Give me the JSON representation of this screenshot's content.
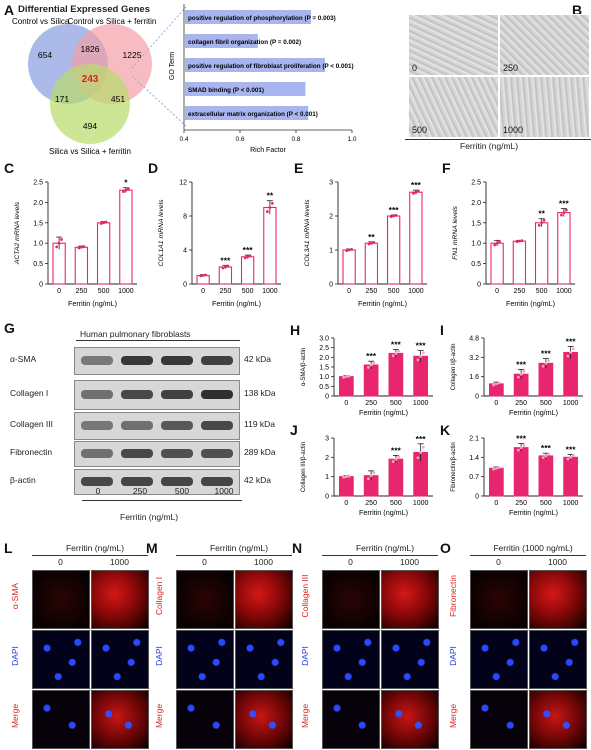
{
  "panels": {
    "A": "A",
    "B": "B",
    "C": "C",
    "D": "D",
    "E": "E",
    "F": "F",
    "G": "G",
    "H": "H",
    "I": "I",
    "J": "J",
    "K": "K",
    "L": "L",
    "M": "M",
    "N": "N",
    "O": "O"
  },
  "venn": {
    "title": "Differential Expressed Genes",
    "set1": "Control vs Silica",
    "set2": "Control vs Silica + ferritin",
    "set3": "Silica vs Silica + ferritin",
    "counts": {
      "only1": "654",
      "only2": "1225",
      "only3": "494",
      "s12": "1826",
      "s13": "171",
      "s23": "451",
      "all": "243"
    }
  },
  "go": {
    "ylabel": "GO Term",
    "xlabel": "Rich Factor",
    "ticks": [
      "0.4",
      "0.6",
      "0.8",
      "1.0"
    ],
    "terms": [
      {
        "label": "positive regulation of phosphorylation (P = 0.003)",
        "rich": 0.85
      },
      {
        "label": "collagen fibril organization (P = 0.002)",
        "rich": 0.66
      },
      {
        "label": "positive regulation of fibroblast proliferation (P < 0.001)",
        "rich": 0.9
      },
      {
        "label": "SMAD binding (P < 0.001)",
        "rich": 0.83
      },
      {
        "label": "extracellular matrix organization (P < 0.001)",
        "rich": 0.84
      }
    ]
  },
  "microscopy_b": {
    "labels": [
      "0",
      "250",
      "500",
      "1000"
    ],
    "xlabel": "Ferritin (ng/mL)"
  },
  "chart_data": [
    {
      "type": "bar",
      "panel": "C",
      "ylabel": "ACTA2 mRNA levels",
      "xlabel": "Ferritin (ng/mL)",
      "categories": [
        "0",
        "250",
        "500",
        "1000"
      ],
      "values": [
        1.0,
        0.9,
        1.5,
        2.3
      ],
      "errors": [
        0.15,
        0.03,
        0.03,
        0.06
      ],
      "ylim": [
        0,
        2.5
      ],
      "yticks": [
        "0",
        "0.5",
        "1.0",
        "1.5",
        "2.0",
        "2.5"
      ],
      "sig": [
        "",
        "",
        "",
        "*"
      ]
    },
    {
      "type": "bar",
      "panel": "D",
      "ylabel": "COL1A1 mRNA levels",
      "xlabel": "Ferritin (ng/mL)",
      "categories": [
        "0",
        "250",
        "500",
        "1000"
      ],
      "values": [
        1.0,
        2.0,
        3.2,
        9.0
      ],
      "errors": [
        0.1,
        0.2,
        0.2,
        0.8
      ],
      "ylim": [
        0,
        12
      ],
      "yticks": [
        "0",
        "4",
        "8",
        "12"
      ],
      "sig": [
        "",
        "***",
        "***",
        "**"
      ]
    },
    {
      "type": "bar",
      "panel": "E",
      "ylabel": "COL3A1 mRNA levels",
      "xlabel": "Ferritin (ng/mL)",
      "categories": [
        "0",
        "250",
        "500",
        "1000"
      ],
      "values": [
        1.0,
        1.2,
        2.0,
        2.7
      ],
      "errors": [
        0.03,
        0.04,
        0.03,
        0.06
      ],
      "ylim": [
        0,
        3
      ],
      "yticks": [
        "0",
        "1",
        "2",
        "3"
      ],
      "sig": [
        "",
        "**",
        "***",
        "***"
      ]
    },
    {
      "type": "bar",
      "panel": "F",
      "ylabel": "FN1 mRNA levels",
      "xlabel": "Ferritin (ng/mL)",
      "categories": [
        "0",
        "250",
        "500",
        "1000"
      ],
      "values": [
        1.0,
        1.05,
        1.5,
        1.75
      ],
      "errors": [
        0.07,
        0.02,
        0.1,
        0.1
      ],
      "ylim": [
        0,
        2.5
      ],
      "yticks": [
        "0",
        "0.5",
        "1.0",
        "1.5",
        "2.0",
        "2.5"
      ],
      "sig": [
        "",
        "",
        "**",
        "***"
      ]
    },
    {
      "type": "bar",
      "panel": "H",
      "ylabel": "α-SMA/β-actin",
      "xlabel": "Ferritin (ng/mL)",
      "categories": [
        "0",
        "250",
        "500",
        "1000"
      ],
      "values": [
        1.0,
        1.6,
        2.2,
        2.05
      ],
      "errors": [
        0.05,
        0.2,
        0.2,
        0.3
      ],
      "ylim": [
        0,
        3
      ],
      "yticks": [
        "0",
        "0.5",
        "1.0",
        "1.5",
        "2.0",
        "2.5",
        "3.0"
      ],
      "sig": [
        "",
        "***",
        "***",
        "***"
      ]
    },
    {
      "type": "bar",
      "panel": "I",
      "ylabel": "Collagen I/β-actin",
      "xlabel": "Ferritin (ng/mL)",
      "categories": [
        "0",
        "250",
        "500",
        "1000"
      ],
      "values": [
        1.0,
        1.8,
        2.7,
        3.6
      ],
      "errors": [
        0.15,
        0.4,
        0.4,
        0.5
      ],
      "ylim": [
        0,
        4.8
      ],
      "yticks": [
        "0",
        "1.6",
        "3.2",
        "4.8"
      ],
      "sig": [
        "",
        "***",
        "***",
        "***"
      ]
    },
    {
      "type": "bar",
      "panel": "J",
      "ylabel": "Collagen III/β-actin",
      "xlabel": "Ferritin (ng/mL)",
      "categories": [
        "0",
        "250",
        "500",
        "1000"
      ],
      "values": [
        1.0,
        1.05,
        1.9,
        2.25
      ],
      "errors": [
        0.05,
        0.25,
        0.2,
        0.45
      ],
      "ylim": [
        0,
        3
      ],
      "yticks": [
        "0",
        "1",
        "2",
        "3"
      ],
      "sig": [
        "",
        "",
        "***",
        "***"
      ]
    },
    {
      "type": "bar",
      "panel": "K",
      "ylabel": "Fibronectin/β-actin",
      "xlabel": "Ferritin (ng/mL)",
      "categories": [
        "0",
        "250",
        "500",
        "1000"
      ],
      "values": [
        1.0,
        1.75,
        1.45,
        1.4
      ],
      "errors": [
        0.05,
        0.15,
        0.1,
        0.1
      ],
      "ylim": [
        0,
        2.1
      ],
      "yticks": [
        "0",
        "0.7",
        "1.4",
        "2.1"
      ],
      "sig": [
        "",
        "***",
        "***",
        "***"
      ]
    }
  ],
  "western": {
    "title": "Human pulmonary fibroblasts",
    "rows": [
      {
        "name": "α-SMA",
        "kda": "42 kDa"
      },
      {
        "name": "Collagen I",
        "kda": "138 kDa"
      },
      {
        "name": "Collagen III",
        "kda": "119 kDa"
      },
      {
        "name": "Fibronectin",
        "kda": "289 kDa"
      },
      {
        "name": "β-actin",
        "kda": "42 kDa"
      }
    ],
    "lanes": [
      "0",
      "250",
      "500",
      "1000"
    ],
    "xlabel": "Ferritin (ng/mL)"
  },
  "immuno": [
    {
      "panel": "L",
      "header": "Ferritin (ng/mL)",
      "cols": [
        "0",
        "1000"
      ],
      "stain": "α-SMA"
    },
    {
      "panel": "M",
      "header": "Ferritin (ng/mL)",
      "cols": [
        "0",
        "1000"
      ],
      "stain": "Collagen I"
    },
    {
      "panel": "N",
      "header": "Ferritin (ng/mL)",
      "cols": [
        "0",
        "1000"
      ],
      "stain": "Collagen III"
    },
    {
      "panel": "O",
      "header": "Ferritin (1000 ng/mL)",
      "cols": [
        "0",
        "1000"
      ],
      "stain": "Fibronectin"
    }
  ],
  "row_labels": {
    "dapi": "DAPI",
    "merge": "Merge"
  },
  "colors": {
    "bar": "#e8266f",
    "bar_outline": "#e8266f",
    "stain_red": "#e02020",
    "dapi_blue": "#2040e0",
    "go_bar": "#a9b5ee"
  }
}
